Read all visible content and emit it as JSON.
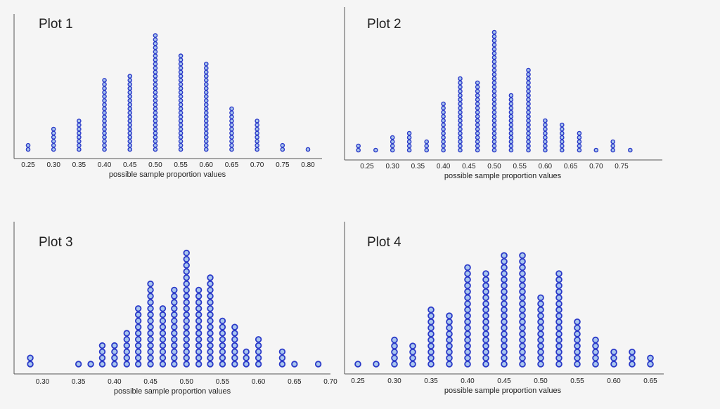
{
  "chart_data": [
    {
      "type": "scatter",
      "subtype": "dot-plot",
      "title": "Plot 1",
      "xlabel": "possible sample proportion values",
      "ylabel": "",
      "tick_labels": [
        "0.25",
        "0.30",
        "0.35",
        "0.40",
        "0.45",
        "0.50",
        "0.55",
        "0.60",
        "0.65",
        "0.70",
        "0.75",
        "0.80"
      ],
      "xlim": [
        0.25,
        0.8
      ],
      "x": [
        0.25,
        0.3,
        0.35,
        0.4,
        0.45,
        0.5,
        0.55,
        0.6,
        0.65,
        0.7,
        0.75,
        0.8
      ],
      "counts": [
        2,
        6,
        8,
        18,
        19,
        29,
        24,
        22,
        11,
        8,
        2,
        1
      ],
      "dot_color": "#2a39c8",
      "dot_fill": "#a9c6ee",
      "grid": false
    },
    {
      "type": "scatter",
      "subtype": "dot-plot",
      "title": "Plot 2",
      "xlabel": "possible sample proportion values",
      "ylabel": "",
      "tick_labels": [
        "0.25",
        "0.30",
        "0.35",
        "0.40",
        "0.45",
        "0.50",
        "0.55",
        "0.60",
        "0.65",
        "0.70",
        "0.75"
      ],
      "xlim": [
        0.25,
        0.75
      ],
      "x": [
        0.233,
        0.267,
        0.3,
        0.333,
        0.367,
        0.4,
        0.433,
        0.467,
        0.5,
        0.533,
        0.567,
        0.6,
        0.633,
        0.667,
        0.7,
        0.733,
        0.767
      ],
      "counts": [
        2,
        1,
        4,
        5,
        3,
        12,
        18,
        17,
        29,
        14,
        20,
        8,
        7,
        5,
        1,
        3,
        1
      ],
      "dot_color": "#2a39c8",
      "dot_fill": "#a9c6ee",
      "grid": false
    },
    {
      "type": "scatter",
      "subtype": "dot-plot",
      "title": "Plot 3",
      "xlabel": "possible sample proportion values",
      "ylabel": "",
      "tick_labels": [
        "0.30",
        "0.35",
        "0.40",
        "0.45",
        "0.50",
        "0.55",
        "0.60",
        "0.65",
        "0.70"
      ],
      "xlim": [
        0.28,
        0.7
      ],
      "x": [
        0.283,
        0.35,
        0.367,
        0.383,
        0.4,
        0.417,
        0.433,
        0.45,
        0.467,
        0.483,
        0.5,
        0.517,
        0.533,
        0.55,
        0.567,
        0.583,
        0.6,
        0.633,
        0.65,
        0.683
      ],
      "counts": [
        2,
        1,
        1,
        4,
        4,
        6,
        10,
        14,
        10,
        13,
        19,
        13,
        15,
        8,
        7,
        3,
        5,
        3,
        1,
        1
      ],
      "dot_color": "#2a39c8",
      "dot_fill": "#a9c6ee",
      "grid": false
    },
    {
      "type": "scatter",
      "subtype": "dot-plot",
      "title": "Plot 4",
      "xlabel": "possible sample proportion values",
      "ylabel": "",
      "tick_labels": [
        "0.25",
        "0.30",
        "0.35",
        "0.40",
        "0.45",
        "0.50",
        "0.55",
        "0.60",
        "0.65"
      ],
      "xlim": [
        0.25,
        0.65
      ],
      "x": [
        0.25,
        0.275,
        0.3,
        0.325,
        0.35,
        0.375,
        0.4,
        0.425,
        0.45,
        0.475,
        0.5,
        0.525,
        0.55,
        0.575,
        0.6,
        0.625,
        0.65
      ],
      "counts": [
        1,
        1,
        5,
        4,
        10,
        9,
        17,
        16,
        19,
        19,
        12,
        16,
        8,
        5,
        3,
        3,
        2
      ],
      "dot_color": "#2a39c8",
      "dot_fill": "#a9c6ee",
      "grid": false
    }
  ]
}
